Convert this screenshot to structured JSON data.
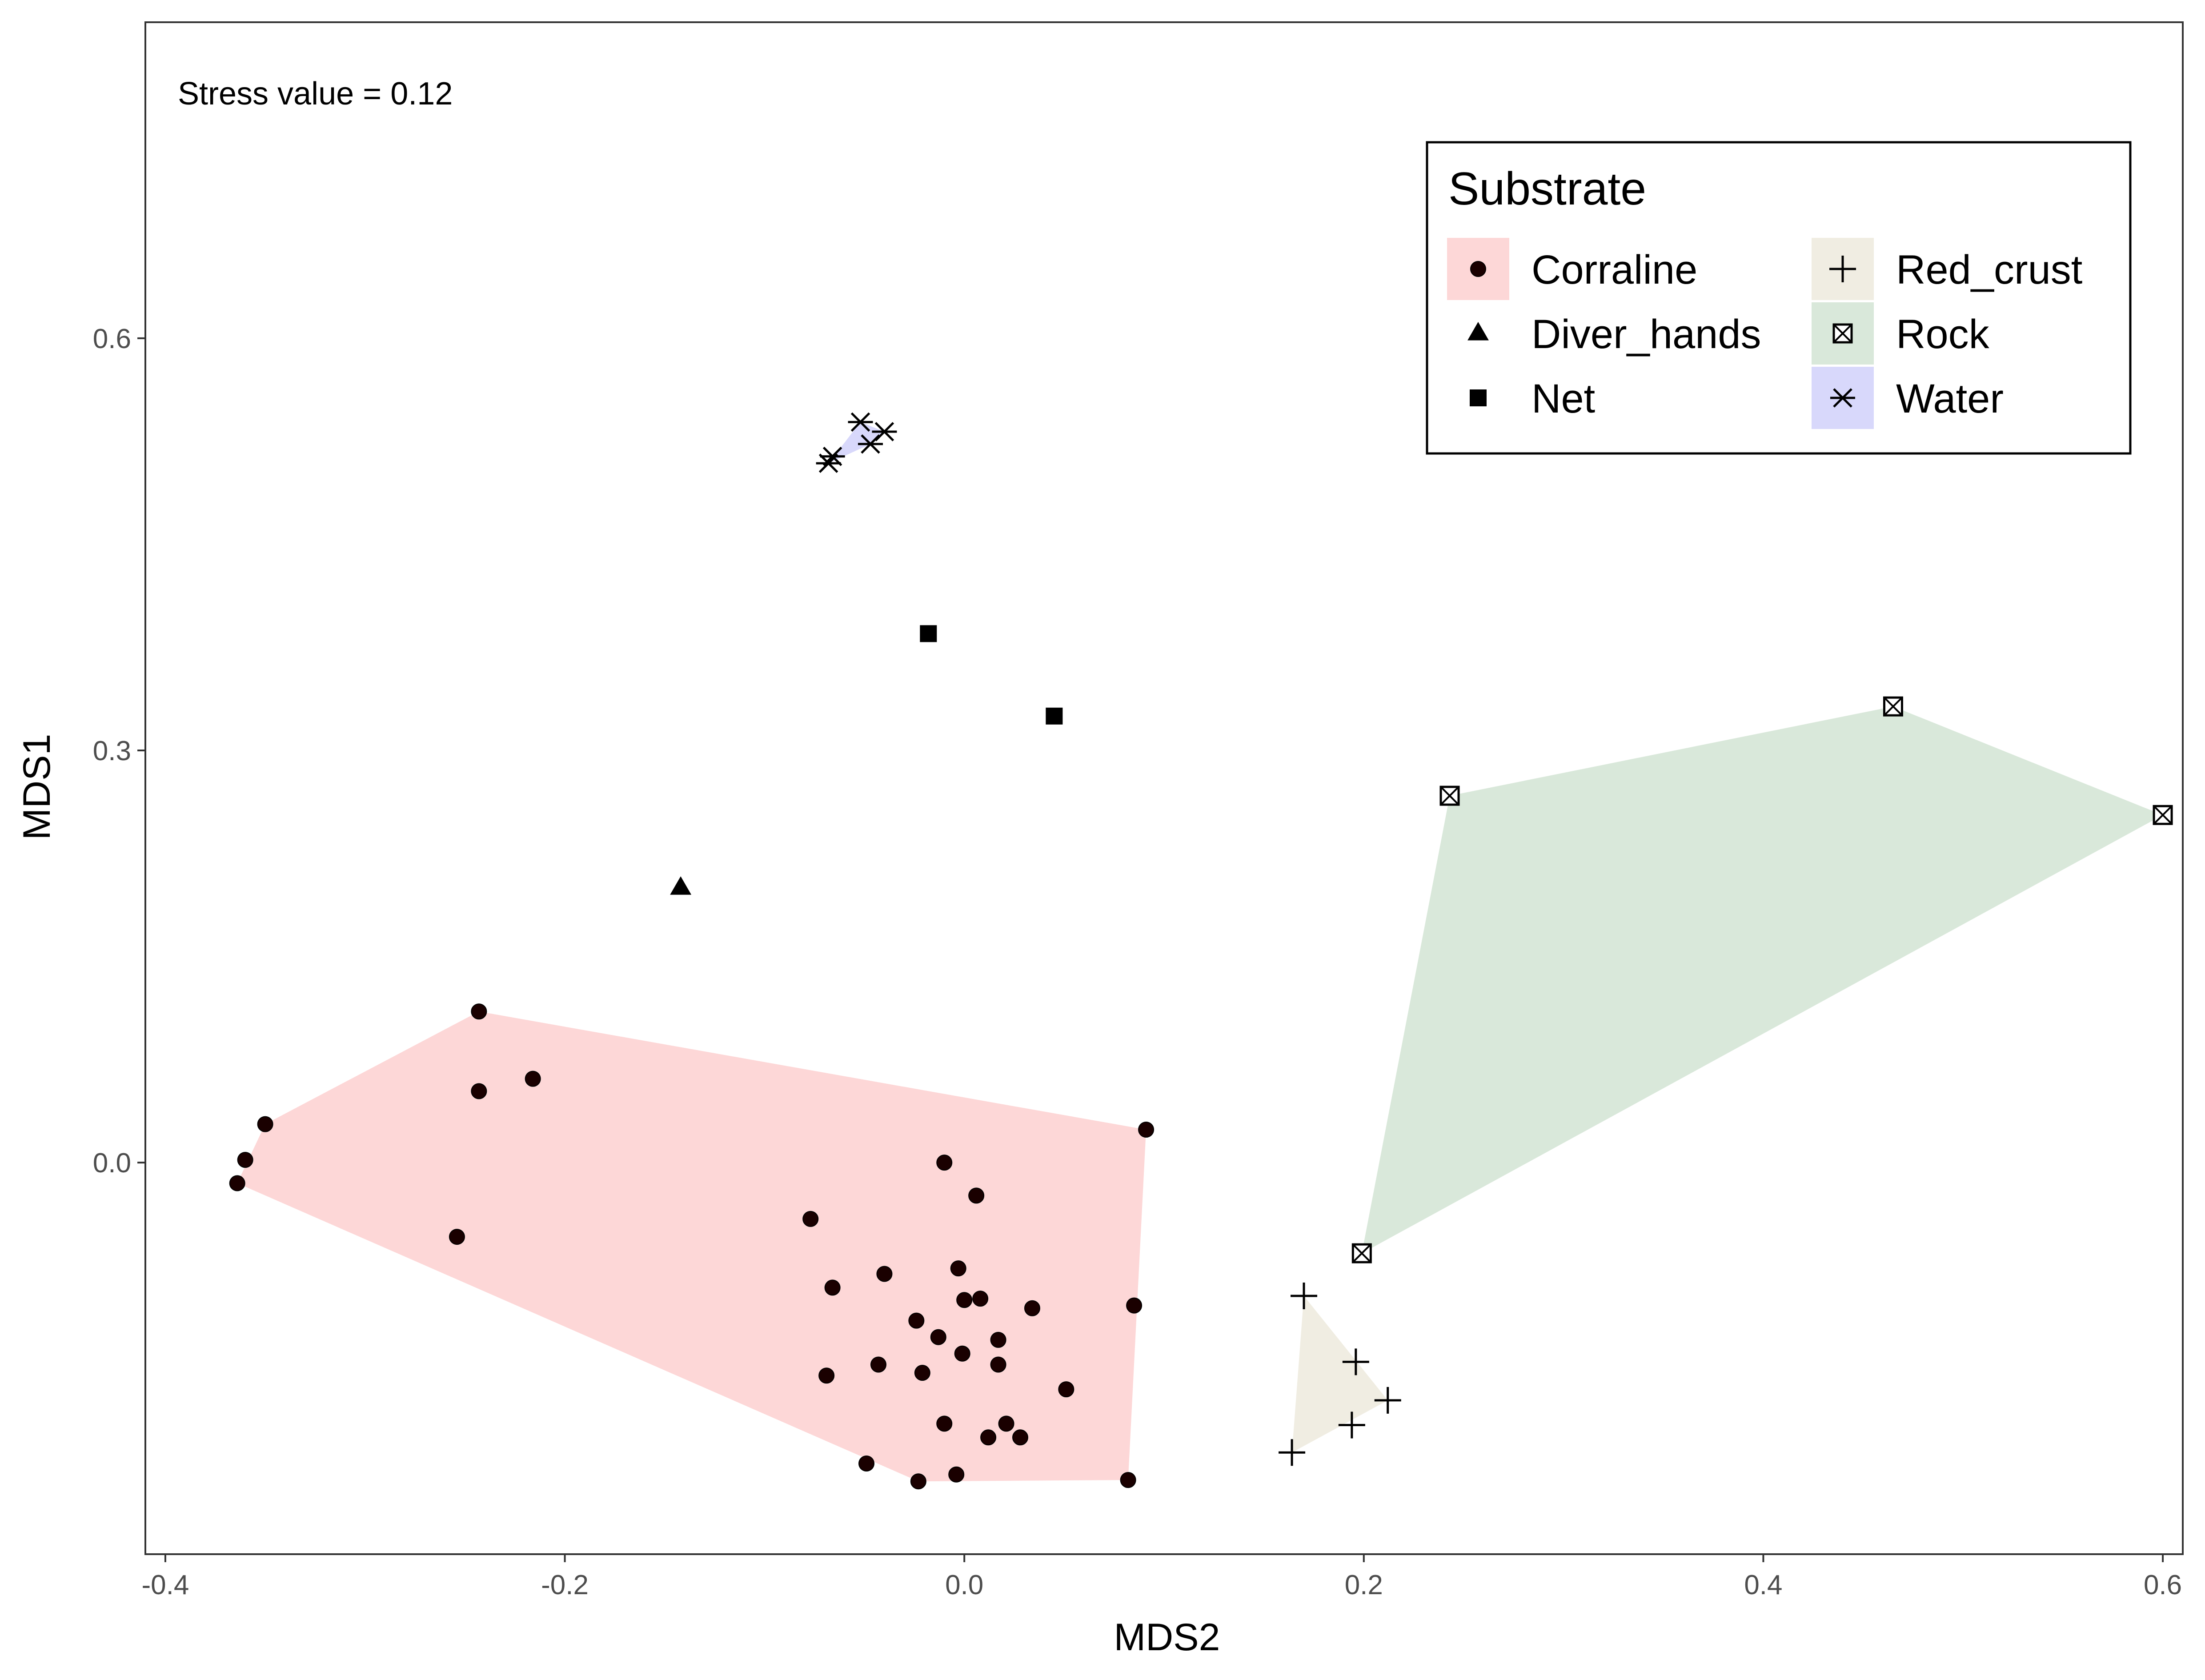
{
  "chart_data": {
    "type": "scatter",
    "annotation": "Stress value  = 0.12",
    "xlabel": "MDS2",
    "ylabel": "MDS1",
    "xlim": [
      -0.41,
      0.61
    ],
    "ylim": [
      -0.285,
      0.83
    ],
    "x_ticks": [
      -0.4,
      -0.2,
      0.0,
      0.2,
      0.4,
      0.6
    ],
    "x_tick_labels": [
      "-0.4",
      "-0.2",
      "0.0",
      "0.2",
      "0.4",
      "0.6"
    ],
    "y_ticks": [
      0.0,
      0.3,
      0.6
    ],
    "y_tick_labels": [
      "0.0",
      "0.3",
      "0.6"
    ],
    "grid": false,
    "legend": {
      "title": "Substrate",
      "position": "top-right",
      "columns": 2
    },
    "series": [
      {
        "name": "Corraline",
        "shape": "circle",
        "fill_color": "#fdd7d7",
        "points": [
          [
            -0.243,
            0.11
          ],
          [
            -0.243,
            0.052
          ],
          [
            -0.216,
            0.061
          ],
          [
            -0.35,
            0.028
          ],
          [
            -0.36,
            0.002
          ],
          [
            -0.364,
            -0.015
          ],
          [
            -0.254,
            -0.054
          ],
          [
            -0.077,
            -0.041
          ],
          [
            -0.01,
            0.0
          ],
          [
            0.006,
            -0.024
          ],
          [
            0.091,
            0.024
          ],
          [
            0.085,
            -0.104
          ],
          [
            -0.066,
            -0.091
          ],
          [
            -0.04,
            -0.081
          ],
          [
            -0.003,
            -0.077
          ],
          [
            0.0,
            -0.1
          ],
          [
            0.008,
            -0.099
          ],
          [
            0.034,
            -0.106
          ],
          [
            -0.024,
            -0.115
          ],
          [
            -0.013,
            -0.127
          ],
          [
            0.017,
            -0.129
          ],
          [
            -0.001,
            -0.139
          ],
          [
            0.017,
            -0.147
          ],
          [
            -0.043,
            -0.147
          ],
          [
            -0.021,
            -0.153
          ],
          [
            -0.069,
            -0.155
          ],
          [
            0.051,
            -0.165
          ],
          [
            -0.01,
            -0.19
          ],
          [
            0.021,
            -0.19
          ],
          [
            0.012,
            -0.2
          ],
          [
            0.028,
            -0.2
          ],
          [
            -0.049,
            -0.219
          ],
          [
            -0.004,
            -0.227
          ],
          [
            -0.023,
            -0.232
          ],
          [
            0.082,
            -0.231
          ]
        ],
        "hull": [
          [
            -0.364,
            -0.015
          ],
          [
            -0.35,
            0.028
          ],
          [
            -0.243,
            0.11
          ],
          [
            0.091,
            0.024
          ],
          [
            0.082,
            -0.231
          ],
          [
            -0.023,
            -0.232
          ]
        ]
      },
      {
        "name": "Diver_hands",
        "shape": "triangle",
        "fill_color": null,
        "points": [
          [
            -0.142,
            0.2
          ]
        ]
      },
      {
        "name": "Net",
        "shape": "square",
        "fill_color": null,
        "points": [
          [
            -0.018,
            0.385
          ],
          [
            0.045,
            0.325
          ]
        ]
      },
      {
        "name": "Red_crust",
        "shape": "plus",
        "fill_color": "#f0ede2",
        "points": [
          [
            0.17,
            -0.097
          ],
          [
            0.196,
            -0.145
          ],
          [
            0.212,
            -0.173
          ],
          [
            0.194,
            -0.191
          ],
          [
            0.164,
            -0.211
          ]
        ],
        "hull": [
          [
            0.17,
            -0.097
          ],
          [
            0.212,
            -0.173
          ],
          [
            0.164,
            -0.211
          ]
        ]
      },
      {
        "name": "Rock",
        "shape": "boxed-x",
        "fill_color": "#d9e8da",
        "points": [
          [
            0.243,
            0.267
          ],
          [
            0.465,
            0.332
          ],
          [
            0.6,
            0.253
          ],
          [
            0.199,
            -0.066
          ]
        ],
        "hull": [
          [
            0.243,
            0.267
          ],
          [
            0.465,
            0.332
          ],
          [
            0.6,
            0.253
          ],
          [
            0.199,
            -0.066
          ]
        ]
      },
      {
        "name": "Water",
        "shape": "asterisk",
        "fill_color": "#d8d8fb",
        "points": [
          [
            -0.052,
            0.539
          ],
          [
            -0.04,
            0.532
          ],
          [
            -0.047,
            0.523
          ],
          [
            -0.066,
            0.514
          ],
          [
            -0.068,
            0.509
          ]
        ],
        "hull": [
          [
            -0.068,
            0.509
          ],
          [
            -0.052,
            0.539
          ],
          [
            -0.04,
            0.532
          ],
          [
            -0.047,
            0.523
          ]
        ]
      }
    ]
  }
}
